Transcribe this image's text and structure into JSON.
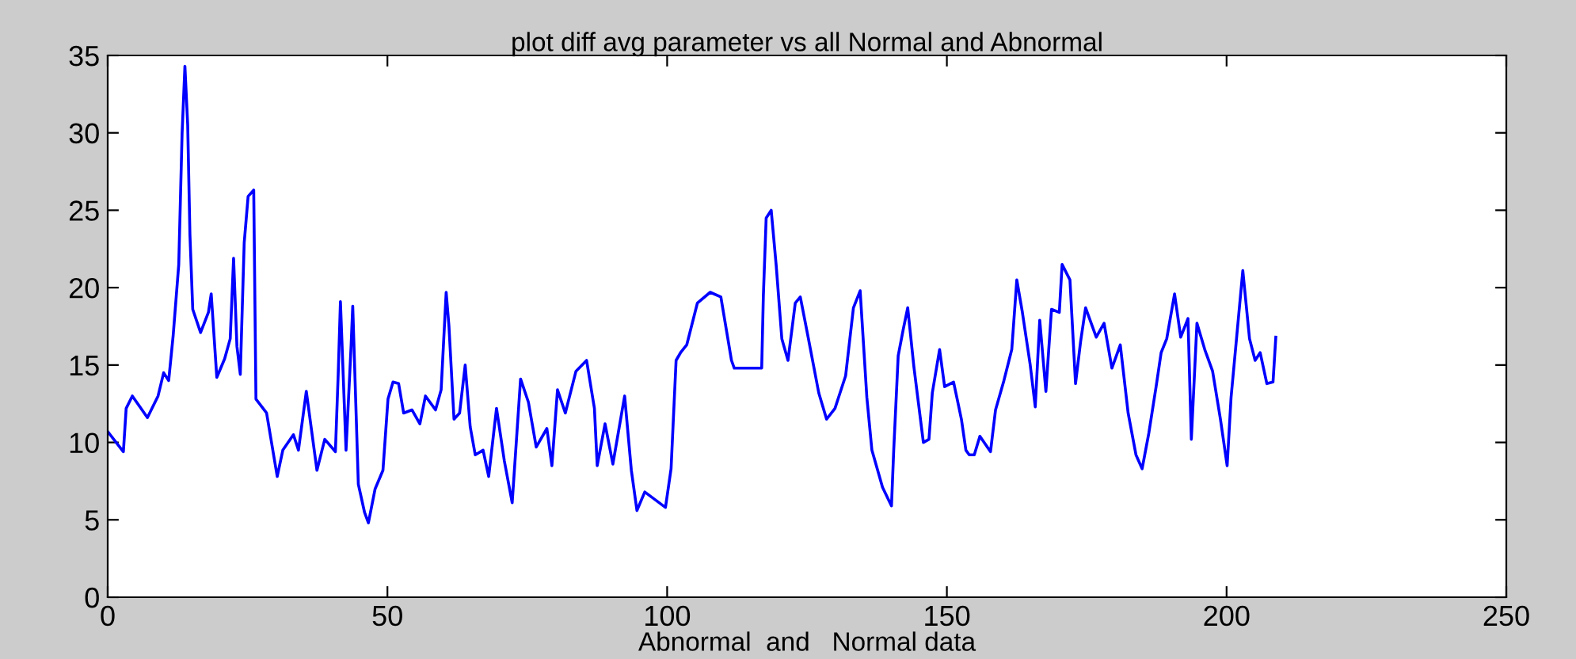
{
  "chart_data": {
    "type": "line",
    "title": "plot diff avg parameter vs all Normal and Abnormal",
    "xlabel": "Abnormal  and   Normal data",
    "xlim": [
      0,
      250
    ],
    "xticks": [
      0,
      50,
      100,
      150,
      200,
      250
    ],
    "ylim": [
      0,
      35
    ],
    "yticks": [
      0,
      5,
      10,
      15,
      20,
      25,
      30,
      35
    ],
    "grid": false,
    "marker": "none",
    "line_style": "solid",
    "series": [
      {
        "color": "#0000ff",
        "x": [
          0,
          2.8,
          3.3,
          4.4,
          7.1,
          9,
          10,
          10.9,
          11.7,
          12.7,
          13.3,
          13.8,
          14.3,
          14.7,
          15.2,
          16.6,
          18,
          18.5,
          19.5,
          20.9,
          21.9,
          22.5,
          23.1,
          23.7,
          24.4,
          25.1,
          26.1,
          26.5,
          28.4,
          30.3,
          31.3,
          33.2,
          34.1,
          35.5,
          37.4,
          38.8,
          40.7,
          41.2,
          41.6,
          42.6,
          43.5,
          43.8,
          44.8,
          45.9,
          46.6,
          47.8,
          49.2,
          50.1,
          51,
          52,
          52.9,
          54.4,
          55.8,
          56.8,
          58.6,
          59.6,
          60.5,
          61,
          61.9,
          62.9,
          63.9,
          64.8,
          65.7,
          67.1,
          68.1,
          69.5,
          70.9,
          72.3,
          73.8,
          75.2,
          76.6,
          78.5,
          79.4,
          80.4,
          81.8,
          83.7,
          85.6,
          87,
          87.5,
          88.9,
          90.3,
          92.4,
          93.6,
          94.6,
          96,
          99.7,
          100.7,
          101.6,
          102.4,
          103.5,
          105.4,
          107.7,
          109.6,
          111.5,
          112,
          116.9,
          117.2,
          117.7,
          118.6,
          119.5,
          120.5,
          121.6,
          122.9,
          123.8,
          125.2,
          127.1,
          128.5,
          130,
          131.9,
          133.3,
          134.5,
          135.7,
          136.6,
          138.5,
          140.1,
          140.5,
          141.3,
          142.2,
          143,
          144.1,
          145.8,
          146.8,
          147.4,
          148.7,
          149.6,
          151.2,
          152.6,
          153.4,
          154,
          154.9,
          155.9,
          157.8,
          158.7,
          160.2,
          161.6,
          162.5,
          163.5,
          164.9,
          165.8,
          166.6,
          167.7,
          168.7,
          170.1,
          170.6,
          172,
          173,
          173.9,
          174.8,
          176.7,
          178.1,
          179.5,
          181,
          182.4,
          183.8,
          184.9,
          186.1,
          187.4,
          188.3,
          189.3,
          190.7,
          191.8,
          193.1,
          193.7,
          194.7,
          196.1,
          197.5,
          198.9,
          200.1,
          200.8,
          201.8,
          202.9,
          204.1,
          205.1,
          206,
          207.2,
          208.3,
          208.8
        ],
        "values": [
          10.7,
          9.4,
          12.2,
          13,
          11.6,
          13,
          14.5,
          14,
          16.9,
          21.5,
          30,
          34.3,
          30.5,
          23.4,
          18.6,
          17.1,
          18.4,
          19.6,
          14.2,
          15.4,
          16.7,
          21.9,
          16.2,
          14.4,
          22.9,
          25.9,
          26.3,
          12.8,
          11.9,
          7.8,
          9.5,
          10.5,
          9.5,
          13.3,
          8.2,
          10.2,
          9.4,
          14.4,
          19.1,
          9.5,
          16.2,
          18.8,
          7.3,
          5.5,
          4.8,
          7,
          8.2,
          12.8,
          13.9,
          13.8,
          11.9,
          12.1,
          11.2,
          13,
          12.1,
          13.4,
          19.7,
          17.5,
          11.5,
          11.9,
          15,
          11,
          9.2,
          9.5,
          7.8,
          12.2,
          8.8,
          6.1,
          14.1,
          12.6,
          9.7,
          10.9,
          8.5,
          13.4,
          11.9,
          14.6,
          15.3,
          12.2,
          8.5,
          11.2,
          8.6,
          13,
          8.2,
          5.6,
          6.8,
          5.8,
          8.3,
          15.3,
          15.8,
          16.3,
          19,
          19.7,
          19.4,
          15.3,
          14.8,
          14.8,
          19.5,
          24.5,
          25,
          21.4,
          16.7,
          15.3,
          19,
          19.4,
          16.8,
          13.2,
          11.5,
          12.2,
          14.3,
          18.7,
          19.8,
          12.9,
          9.5,
          7.1,
          5.9,
          9.5,
          15.6,
          17.3,
          18.7,
          14.9,
          10,
          10.2,
          13.2,
          16,
          13.6,
          13.9,
          11.5,
          9.5,
          9.2,
          9.2,
          10.4,
          9.4,
          12.1,
          14,
          16,
          20.5,
          18.4,
          15,
          12.3,
          17.9,
          13.3,
          18.6,
          18.4,
          21.5,
          20.5,
          13.8,
          16.5,
          18.7,
          16.8,
          17.7,
          14.8,
          16.3,
          11.9,
          9.2,
          8.3,
          10.6,
          13.6,
          15.8,
          16.7,
          19.6,
          16.8,
          18,
          10.2,
          17.7,
          16,
          14.6,
          11.5,
          8.5,
          12.9,
          16.8,
          21.1,
          16.7,
          15.3,
          15.8,
          13.8,
          13.9,
          16.8
        ]
      }
    ]
  }
}
